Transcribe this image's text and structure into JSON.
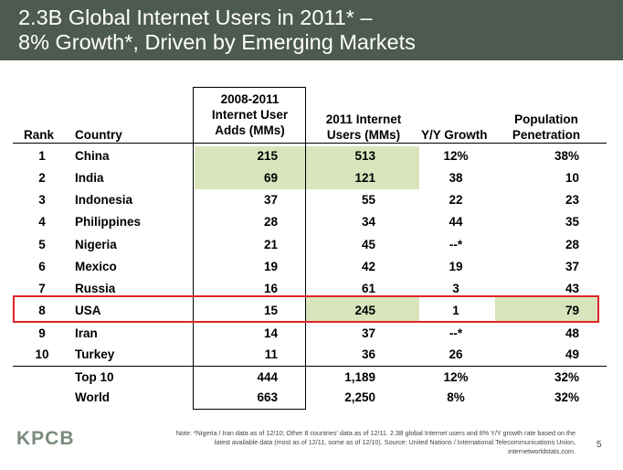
{
  "title": {
    "line1": "2.3B Global Internet Users in 2011* –",
    "line2": "8% Growth*, Driven by Emerging Markets"
  },
  "colors": {
    "header_bg": "#4d5a4f",
    "highlight": "#d8e4bc",
    "usa_frame": "#e02424"
  },
  "table": {
    "headers": {
      "rank": "Rank",
      "country": "Country",
      "adds": [
        "2008-2011",
        "Internet User",
        "Adds (MMs)"
      ],
      "users": [
        "2011 Internet",
        "Users (MMs)"
      ],
      "yoy": "Y/Y Growth",
      "penetration": [
        "Population",
        "Penetration"
      ]
    },
    "rows": [
      {
        "rank": "1",
        "country": "China",
        "adds": "215",
        "users": "513",
        "yoy": "12%",
        "penetration": "38%"
      },
      {
        "rank": "2",
        "country": "India",
        "adds": "69",
        "users": "121",
        "yoy": "38",
        "penetration": "10"
      },
      {
        "rank": "3",
        "country": "Indonesia",
        "adds": "37",
        "users": "55",
        "yoy": "22",
        "penetration": "23"
      },
      {
        "rank": "4",
        "country": "Philippines",
        "adds": "28",
        "users": "34",
        "yoy": "44",
        "penetration": "35"
      },
      {
        "rank": "5",
        "country": "Nigeria",
        "adds": "21",
        "users": "45",
        "yoy": "--*",
        "penetration": "28"
      },
      {
        "rank": "6",
        "country": "Mexico",
        "adds": "19",
        "users": "42",
        "yoy": "19",
        "penetration": "37"
      },
      {
        "rank": "7",
        "country": "Russia",
        "adds": "16",
        "users": "61",
        "yoy": "3",
        "penetration": "43"
      },
      {
        "rank": "8",
        "country": "USA",
        "adds": "15",
        "users": "245",
        "yoy": "1",
        "penetration": "79"
      },
      {
        "rank": "9",
        "country": "Iran",
        "adds": "14",
        "users": "37",
        "yoy": "--*",
        "penetration": "48"
      },
      {
        "rank": "10",
        "country": "Turkey",
        "adds": "11",
        "users": "36",
        "yoy": "26",
        "penetration": "49"
      }
    ],
    "totals": [
      {
        "label": "Top 10",
        "adds": "444",
        "users": "1,189",
        "yoy": "12%",
        "penetration": "32%"
      },
      {
        "label": "World",
        "adds": "663",
        "users": "2,250",
        "yoy": "8%",
        "penetration": "32%"
      }
    ]
  },
  "footer": {
    "logo": "KPCB",
    "note_lines": [
      "Note: *Nigeria / Iran data as of 12/10; Other 8 countries' data as of 12/11. 2.3B global Internet users and 8% Y/Y growth rate based on the",
      "latest available data (most as of 12/11, some as of 12/10). Source: United Nations / International Telecommunications Union,",
      "internetworldstats.com."
    ],
    "page_number": "5"
  }
}
